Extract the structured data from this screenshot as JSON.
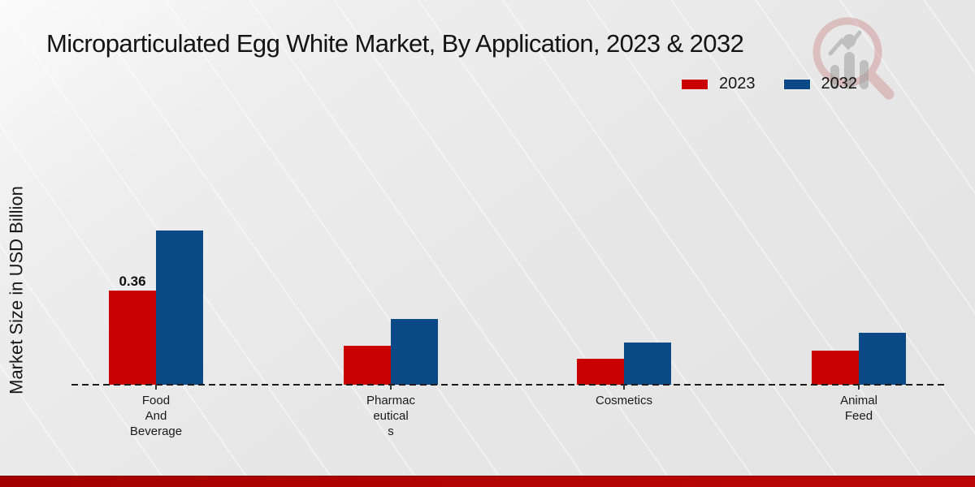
{
  "page": {
    "title": "Microparticulated Egg White Market, By Application, 2023 & 2032",
    "ylabel": "Market Size in USD Billion",
    "watermark": "magnifier-bar-chart-logo"
  },
  "colors": {
    "series_2023": "#c90202",
    "series_2032": "#0b4a87",
    "axis": "#1c1c1c",
    "bottom_strip": "#b00404",
    "background": "#e7e7e7"
  },
  "chart_data": {
    "type": "bar",
    "title": "Microparticulated Egg White Market, By Application, 2023 & 2032",
    "xlabel": "",
    "ylabel": "Market Size in USD Billion",
    "categories": [
      "Food And Beverage",
      "Pharmaceuticals",
      "Cosmetics",
      "Animal Feed"
    ],
    "category_label_lines": [
      [
        "Food",
        "And",
        "Beverage"
      ],
      [
        "Pharmac",
        "eutical",
        "s"
      ],
      [
        "Cosmetics"
      ],
      [
        "Animal",
        "Feed"
      ]
    ],
    "series": [
      {
        "name": "2023",
        "color": "#c90202",
        "values": [
          0.36,
          0.15,
          0.1,
          0.13
        ]
      },
      {
        "name": "2032",
        "color": "#0b4a87",
        "values": [
          0.59,
          0.25,
          0.16,
          0.2
        ]
      }
    ],
    "data_labels": [
      {
        "series": "2023",
        "category": "Food And Beverage",
        "text": "0.36"
      }
    ],
    "ylim": [
      0,
      0.65
    ],
    "grid": false,
    "y_axis_ticks_visible": false,
    "baseline_style": "dashed",
    "legend_position": "top-right"
  },
  "legend": {
    "items": [
      {
        "label": "2023",
        "color": "#c90202"
      },
      {
        "label": "2032",
        "color": "#0b4a87"
      }
    ]
  }
}
